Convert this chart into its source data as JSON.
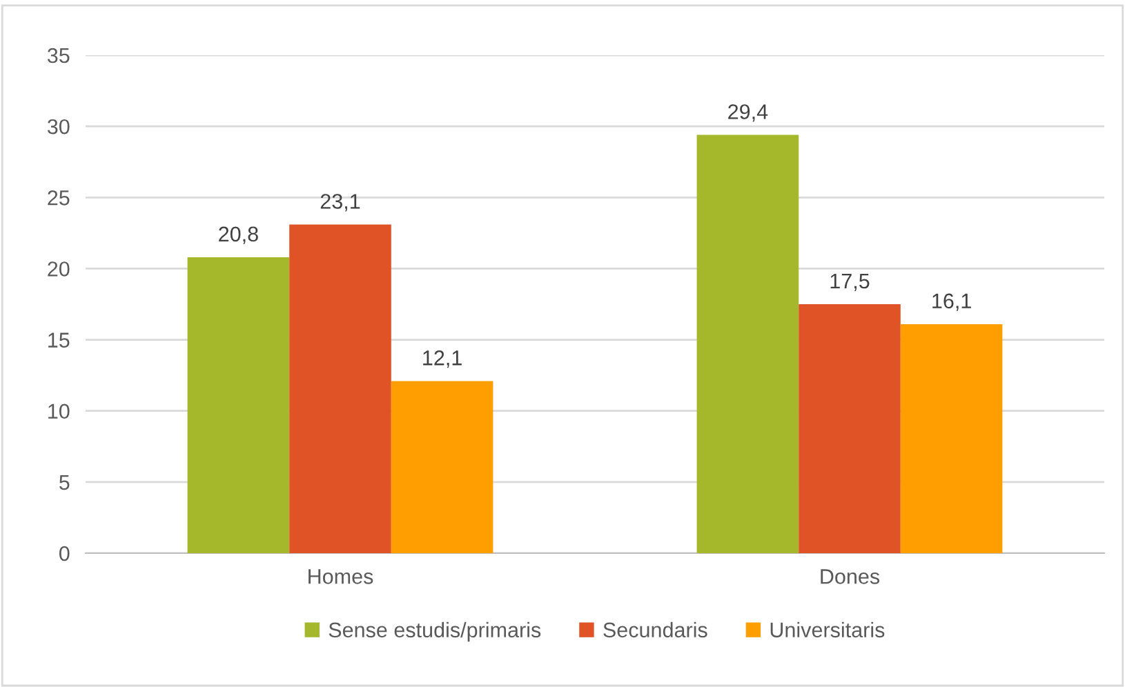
{
  "chart_data": {
    "type": "bar",
    "categories": [
      "Homes",
      "Dones"
    ],
    "series": [
      {
        "name": "Sense estudis/primaris",
        "color": "#a5b72b",
        "values": [
          20.8,
          29.4
        ],
        "value_labels": [
          "20,8",
          "29,4"
        ]
      },
      {
        "name": "Secundaris",
        "color": "#e05327",
        "values": [
          23.1,
          17.5
        ],
        "value_labels": [
          "23,1",
          "17,5"
        ]
      },
      {
        "name": "Universitaris",
        "color": "#ff9e00",
        "values": [
          12.1,
          16.1
        ],
        "value_labels": [
          "12,1",
          "16,1"
        ]
      }
    ],
    "ylim": [
      0,
      35
    ],
    "yticks": [
      0,
      5,
      10,
      15,
      20,
      25,
      30,
      35
    ],
    "grid": "y",
    "legend": "bottom"
  }
}
